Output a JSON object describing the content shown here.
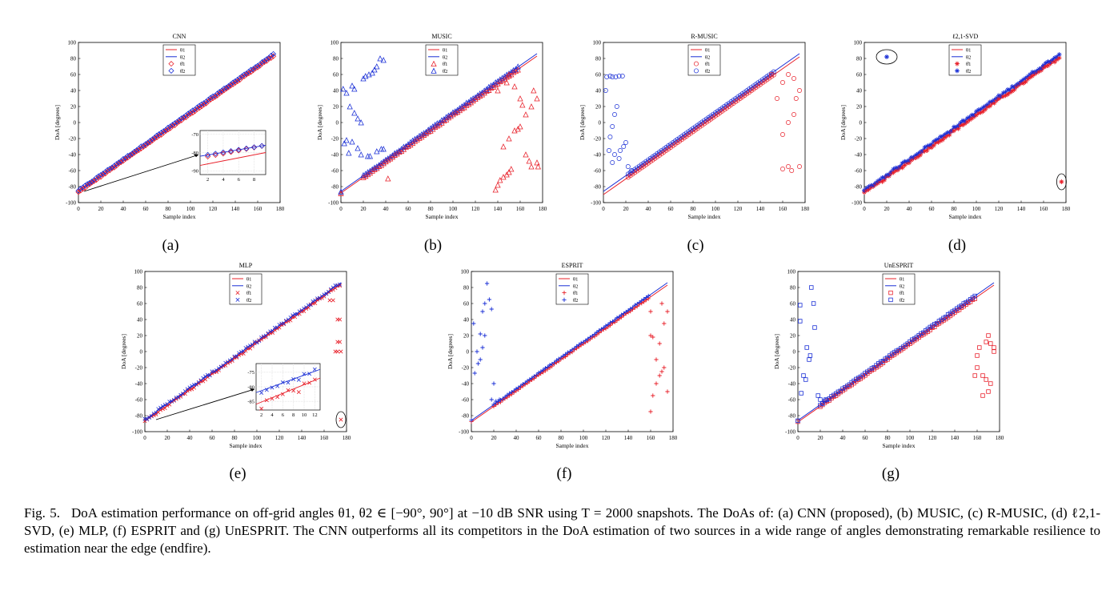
{
  "figure": {
    "common": {
      "xlabel": "Sample index",
      "ylabel": "DoA [degrees]",
      "xticks": [
        0,
        20,
        40,
        60,
        80,
        100,
        120,
        140,
        160,
        180
      ],
      "yticks": [
        100,
        80,
        60,
        40,
        20,
        0,
        -20,
        -40,
        -60,
        -80,
        -100
      ],
      "xlim": [
        0,
        180
      ],
      "ylim": [
        -100,
        100
      ],
      "legend_labels": [
        "θ1",
        "θ2",
        "θ̂1",
        "θ̂2"
      ]
    },
    "colors": {
      "theta1": "#e8202a",
      "theta2": "#1a2fd6",
      "axis": "#000000",
      "circle": "#7a1b1b"
    }
  },
  "chart_data": [
    {
      "panel": "(a)",
      "title": "CNN",
      "type": "scatter",
      "marker": "diamond",
      "series": [
        {
          "name": "θ1",
          "kind": "line",
          "x": [
            0,
            175
          ],
          "y": [
            -87,
            84
          ]
        },
        {
          "name": "θ2",
          "kind": "line",
          "x": [
            0,
            175
          ],
          "y": [
            -85,
            86
          ]
        },
        {
          "name": "θ̂1",
          "kind": "points",
          "x_range": [
            0,
            175
          ],
          "y_range": [
            -87,
            84
          ]
        },
        {
          "name": "θ̂2",
          "kind": "points",
          "x_range": [
            0,
            175
          ],
          "y_range": [
            -85,
            86
          ]
        }
      ],
      "inset": {
        "xticks": [
          2,
          4,
          6,
          8
        ],
        "yticks": [
          -70,
          -80,
          -90
        ],
        "xlim": [
          1,
          9.5
        ],
        "ylim": [
          -92,
          -68
        ]
      },
      "legend": "top-center"
    },
    {
      "panel": "(b)",
      "title": "MUSIC",
      "type": "scatter",
      "marker": "triangle",
      "series": [
        {
          "name": "θ1",
          "kind": "line",
          "x": [
            0,
            175
          ],
          "y": [
            -88,
            83
          ]
        },
        {
          "name": "θ2",
          "kind": "line",
          "x": [
            0,
            175
          ],
          "y": [
            -86,
            86
          ]
        }
      ],
      "outliers_theta2": [
        [
          2,
          42
        ],
        [
          5,
          37
        ],
        [
          8,
          20
        ],
        [
          10,
          46
        ],
        [
          12,
          42
        ],
        [
          12,
          12
        ],
        [
          15,
          5
        ],
        [
          18,
          0
        ],
        [
          5,
          -22
        ],
        [
          3,
          -26
        ],
        [
          7,
          -38
        ],
        [
          10,
          -24
        ],
        [
          15,
          -32
        ],
        [
          18,
          -40
        ],
        [
          20,
          55
        ],
        [
          22,
          58
        ],
        [
          25,
          60
        ],
        [
          28,
          62
        ],
        [
          30,
          66
        ],
        [
          32,
          70
        ],
        [
          35,
          80
        ],
        [
          38,
          78
        ],
        [
          26,
          -42
        ],
        [
          24,
          -42
        ],
        [
          32,
          -36
        ],
        [
          36,
          -33
        ],
        [
          38,
          -33
        ]
      ],
      "outliers_theta1": [
        [
          42,
          -70
        ],
        [
          138,
          -84
        ],
        [
          140,
          -78
        ],
        [
          142,
          -72
        ],
        [
          145,
          -68
        ],
        [
          148,
          -65
        ],
        [
          150,
          -62
        ],
        [
          152,
          -58
        ],
        [
          145,
          -30
        ],
        [
          150,
          -20
        ],
        [
          155,
          -10
        ],
        [
          160,
          -5
        ],
        [
          165,
          10
        ],
        [
          170,
          20
        ],
        [
          172,
          40
        ],
        [
          175,
          30
        ],
        [
          160,
          30
        ],
        [
          162,
          22
        ],
        [
          158,
          -8
        ],
        [
          165,
          -40
        ],
        [
          168,
          -48
        ],
        [
          170,
          -55
        ],
        [
          175,
          -50
        ],
        [
          140,
          40
        ],
        [
          148,
          50
        ],
        [
          150,
          60
        ],
        [
          155,
          45
        ],
        [
          176,
          -55
        ]
      ],
      "legend": "top-center"
    },
    {
      "panel": "(c)",
      "title": "R-MUSIC",
      "type": "scatter",
      "marker": "circle",
      "series": [
        {
          "name": "θ1",
          "kind": "line",
          "x": [
            0,
            175
          ],
          "y": [
            -90,
            82
          ]
        },
        {
          "name": "θ2",
          "kind": "line",
          "x": [
            0,
            175
          ],
          "y": [
            -86,
            86
          ]
        }
      ],
      "outliers_theta2": [
        [
          2,
          40
        ],
        [
          3,
          57
        ],
        [
          6,
          58
        ],
        [
          8,
          57
        ],
        [
          11,
          57
        ],
        [
          14,
          58
        ],
        [
          17,
          58
        ],
        [
          12,
          20
        ],
        [
          10,
          10
        ],
        [
          8,
          -5
        ],
        [
          6,
          -18
        ],
        [
          5,
          -35
        ],
        [
          8,
          -50
        ],
        [
          10,
          -40
        ],
        [
          14,
          -45
        ],
        [
          15,
          -35
        ],
        [
          18,
          -30
        ],
        [
          20,
          -25
        ],
        [
          22,
          -55
        ],
        [
          25,
          -60
        ]
      ],
      "outliers_theta1": [
        [
          150,
          60
        ],
        [
          155,
          30
        ],
        [
          160,
          -15
        ],
        [
          165,
          0
        ],
        [
          170,
          10
        ],
        [
          172,
          30
        ],
        [
          175,
          40
        ],
        [
          160,
          50
        ],
        [
          165,
          60
        ],
        [
          170,
          55
        ],
        [
          175,
          -55
        ],
        [
          165,
          -55
        ],
        [
          168,
          -60
        ],
        [
          160,
          -58
        ]
      ],
      "legend": "top-center"
    },
    {
      "panel": "(d)",
      "title": "ℓ2,1-SVD",
      "type": "scatter",
      "marker": "star",
      "series": [
        {
          "name": "θ1",
          "kind": "line",
          "x": [
            0,
            175
          ],
          "y": [
            -88,
            82
          ]
        },
        {
          "name": "θ2",
          "kind": "line",
          "x": [
            0,
            175
          ],
          "y": [
            -85,
            86
          ]
        }
      ],
      "circled_points": [
        [
          20,
          82
        ],
        [
          176,
          -74
        ]
      ],
      "legend": "top-center"
    },
    {
      "panel": "(e)",
      "title": "MLP",
      "type": "scatter",
      "marker": "x",
      "series": [
        {
          "name": "θ1",
          "kind": "line",
          "x": [
            0,
            175
          ],
          "y": [
            -87,
            84
          ]
        },
        {
          "name": "θ2",
          "kind": "line",
          "x": [
            0,
            175
          ],
          "y": [
            -85,
            86
          ]
        }
      ],
      "outliers_theta1": [
        [
          172,
          40
        ],
        [
          174,
          40
        ],
        [
          172,
          12
        ],
        [
          174,
          12
        ],
        [
          170,
          0
        ],
        [
          172,
          0
        ],
        [
          175,
          0
        ],
        [
          165,
          64
        ],
        [
          168,
          64
        ]
      ],
      "circled_points": [
        [
          175,
          -85
        ]
      ],
      "inset": {
        "xticks": [
          2,
          4,
          6,
          8,
          10,
          12
        ],
        "yticks": [
          -75,
          -80,
          -85
        ],
        "xlim": [
          1,
          13
        ],
        "ylim": [
          -88,
          -72
        ]
      },
      "legend": "top-center"
    },
    {
      "panel": "(f)",
      "title": "ESPRIT",
      "type": "scatter",
      "marker": "plus",
      "series": [
        {
          "name": "θ1",
          "kind": "line",
          "x": [
            0,
            175
          ],
          "y": [
            -88,
            83
          ]
        },
        {
          "name": "θ2",
          "kind": "line",
          "x": [
            0,
            175
          ],
          "y": [
            -86,
            86
          ]
        }
      ],
      "outliers_theta2": [
        [
          2,
          35
        ],
        [
          3,
          -27
        ],
        [
          5,
          0
        ],
        [
          6,
          -15
        ],
        [
          8,
          -10
        ],
        [
          8,
          22
        ],
        [
          10,
          50
        ],
        [
          12,
          60
        ],
        [
          14,
          85
        ],
        [
          16,
          65
        ],
        [
          18,
          53
        ],
        [
          12,
          20
        ],
        [
          10,
          5
        ],
        [
          20,
          -40
        ],
        [
          18,
          -60
        ],
        [
          22,
          -62
        ],
        [
          25,
          -60
        ]
      ],
      "outliers_theta1": [
        [
          160,
          -75
        ],
        [
          162,
          -55
        ],
        [
          165,
          -40
        ],
        [
          168,
          -30
        ],
        [
          170,
          -25
        ],
        [
          172,
          -20
        ],
        [
          175,
          -50
        ],
        [
          160,
          20
        ],
        [
          162,
          18
        ],
        [
          165,
          -10
        ],
        [
          168,
          10
        ],
        [
          170,
          60
        ],
        [
          172,
          35
        ],
        [
          175,
          50
        ],
        [
          160,
          50
        ]
      ],
      "legend": "top-center"
    },
    {
      "panel": "(g)",
      "title": "UnESPRIT",
      "type": "scatter",
      "marker": "square",
      "series": [
        {
          "name": "θ1",
          "kind": "line",
          "x": [
            0,
            175
          ],
          "y": [
            -88,
            83
          ]
        },
        {
          "name": "θ2",
          "kind": "line",
          "x": [
            0,
            175
          ],
          "y": [
            -86,
            86
          ]
        }
      ],
      "outliers_theta2": [
        [
          2,
          58
        ],
        [
          2,
          38
        ],
        [
          5,
          -30
        ],
        [
          7,
          -35
        ],
        [
          8,
          5
        ],
        [
          10,
          -10
        ],
        [
          11,
          -5
        ],
        [
          12,
          80
        ],
        [
          14,
          60
        ],
        [
          15,
          30
        ],
        [
          18,
          -55
        ],
        [
          20,
          -60
        ],
        [
          22,
          -65
        ],
        [
          25,
          -60
        ],
        [
          3,
          -52
        ]
      ],
      "outliers_theta1": [
        [
          158,
          -30
        ],
        [
          160,
          -20
        ],
        [
          165,
          -55
        ],
        [
          168,
          -35
        ],
        [
          170,
          20
        ],
        [
          172,
          10
        ],
        [
          175,
          0
        ],
        [
          160,
          -5
        ],
        [
          162,
          5
        ],
        [
          168,
          12
        ],
        [
          170,
          -50
        ],
        [
          175,
          5
        ],
        [
          165,
          -30
        ],
        [
          172,
          -40
        ]
      ],
      "legend": "top-center"
    }
  ],
  "caption": {
    "label": "Fig. 5.",
    "text": "DoA estimation performance on off-grid angles θ1, θ2 ∈ [−90°, 90°] at −10 dB SNR using T = 2000 snapshots. The DoAs of: (a) CNN (proposed), (b) MUSIC, (c) R-MUSIC, (d) ℓ2,1-SVD, (e) MLP, (f) ESPRIT and (g) UnESPRIT. The CNN outperforms all its competitors in the DoA estimation of two sources in a wide range of angles demonstrating remarkable resilience to estimation near the edge (endfire)."
  }
}
